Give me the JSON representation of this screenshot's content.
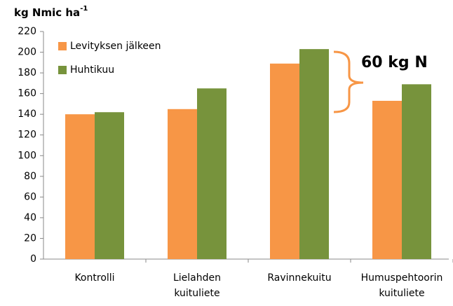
{
  "chart_data": {
    "type": "bar",
    "ylabel": {
      "text": "kg Nmic ha",
      "superscript": "-1"
    },
    "categories": [
      [
        "Kontrolli"
      ],
      [
        "Lielahden",
        "kuituliete"
      ],
      [
        "Ravinnekuitu"
      ],
      [
        "Humuspehtoorin",
        "kuituliete"
      ]
    ],
    "series": [
      {
        "name": "Levityksen jälkeen",
        "color": "#f79646",
        "values": [
          140,
          145,
          189,
          153
        ]
      },
      {
        "name": "Huhtikuu",
        "color": "#77933c",
        "values": [
          142,
          165,
          203,
          169
        ]
      }
    ],
    "ylim": [
      0,
      220
    ],
    "yticks": [
      0,
      20,
      40,
      60,
      80,
      100,
      120,
      140,
      160,
      180,
      200,
      220
    ],
    "grid": false,
    "legend": "top-left",
    "annotation": {
      "text": "60 kg N",
      "color": "#e8242c"
    }
  }
}
